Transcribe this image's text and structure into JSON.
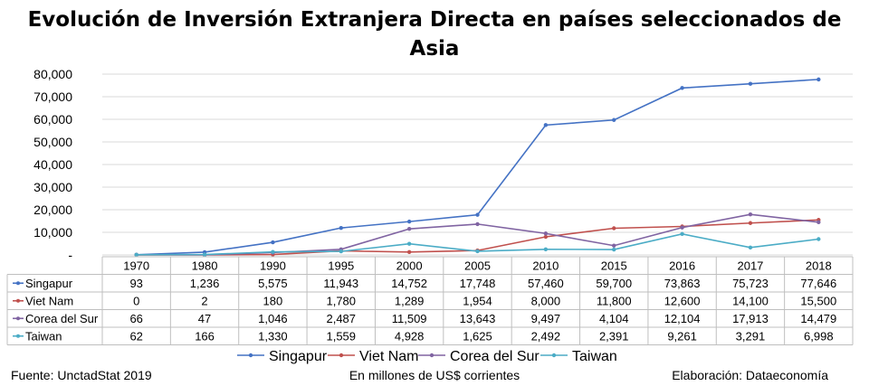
{
  "chart_data": {
    "type": "line",
    "title": "Evolución de Inversión Extranjera Directa en países seleccionados de Asia",
    "categories": [
      "1970",
      "1980",
      "1990",
      "1995",
      "2000",
      "2005",
      "2010",
      "2015",
      "2016",
      "2017",
      "2018"
    ],
    "ylim": [
      0,
      80000
    ],
    "y_ticks": [
      "-",
      "10,000",
      "20,000",
      "30,000",
      "40,000",
      "50,000",
      "60,000",
      "70,000",
      "80,000"
    ],
    "grid": true,
    "legend_position": "bottom",
    "series": [
      {
        "name": "Singapur",
        "color": "#4472c4",
        "values": [
          93,
          1236,
          5575,
          11943,
          14752,
          17748,
          57460,
          59700,
          73863,
          75723,
          77646
        ],
        "labels": [
          "93",
          "1,236",
          "5,575",
          "11,943",
          "14,752",
          "17,748",
          "57,460",
          "59,700",
          "73,863",
          "75,723",
          "77,646"
        ]
      },
      {
        "name": "Viet Nam",
        "color": "#c0504d",
        "values": [
          0,
          2,
          180,
          1780,
          1289,
          1954,
          8000,
          11800,
          12600,
          14100,
          15500
        ],
        "labels": [
          "0",
          "2",
          "180",
          "1,780",
          "1,289",
          "1,954",
          "8,000",
          "11,800",
          "12,600",
          "14,100",
          "15,500"
        ]
      },
      {
        "name": "Corea del Sur",
        "color": "#8064a2",
        "values": [
          66,
          47,
          1046,
          2487,
          11509,
          13643,
          9497,
          4104,
          12104,
          17913,
          14479
        ],
        "labels": [
          "66",
          "47",
          "1,046",
          "2,487",
          "11,509",
          "13,643",
          "9,497",
          "4,104",
          "12,104",
          "17,913",
          "14,479"
        ]
      },
      {
        "name": "Taiwan",
        "color": "#4bacc6",
        "values": [
          62,
          166,
          1330,
          1559,
          4928,
          1625,
          2492,
          2391,
          9261,
          3291,
          6998
        ],
        "labels": [
          "62",
          "166",
          "1,330",
          "1,559",
          "4,928",
          "1,625",
          "2,492",
          "2,391",
          "9,261",
          "3,291",
          "6,998"
        ]
      }
    ]
  },
  "footer": {
    "source": "Fuente: UnctadStat 2019",
    "units": "En millones de US$ corrientes",
    "credit": "Elaboración: Dataeconomía"
  }
}
